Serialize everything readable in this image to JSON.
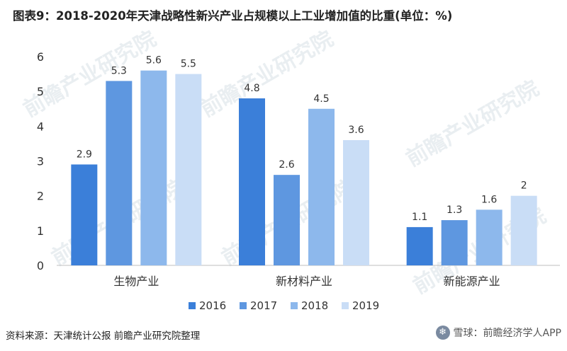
{
  "title": "图表9：2018-2020年天津战略性新兴产业占规模以上工业增加值的比重(单位：%)",
  "source": "资料来源：天津统计公报 前瞻产业研究院整理",
  "footer_mark": "雪球：前瞻经济学人APP",
  "watermark": "前瞻产业研究院",
  "chart_data": {
    "type": "bar",
    "title": "图表9：2018-2020年天津战略性新兴产业占规模以上工业增加值的比重(单位：%)",
    "xlabel": "",
    "ylabel": "",
    "categories": [
      "生物产业",
      "新材料产业",
      "新能源产业"
    ],
    "series": [
      {
        "name": "2016",
        "color": "#3b7fd9",
        "values": [
          2.9,
          4.8,
          1.1
        ]
      },
      {
        "name": "2017",
        "color": "#5e97e0",
        "values": [
          5.3,
          2.6,
          1.3
        ]
      },
      {
        "name": "2018",
        "color": "#8db8ec",
        "values": [
          5.6,
          4.5,
          1.6
        ]
      },
      {
        "name": "2019",
        "color": "#c9ddf6",
        "values": [
          5.5,
          3.6,
          2
        ]
      }
    ],
    "ylim": [
      0,
      6
    ],
    "yticks": [
      0,
      1,
      2,
      3,
      4,
      5,
      6
    ],
    "grid": false,
    "legend": "bottom"
  }
}
